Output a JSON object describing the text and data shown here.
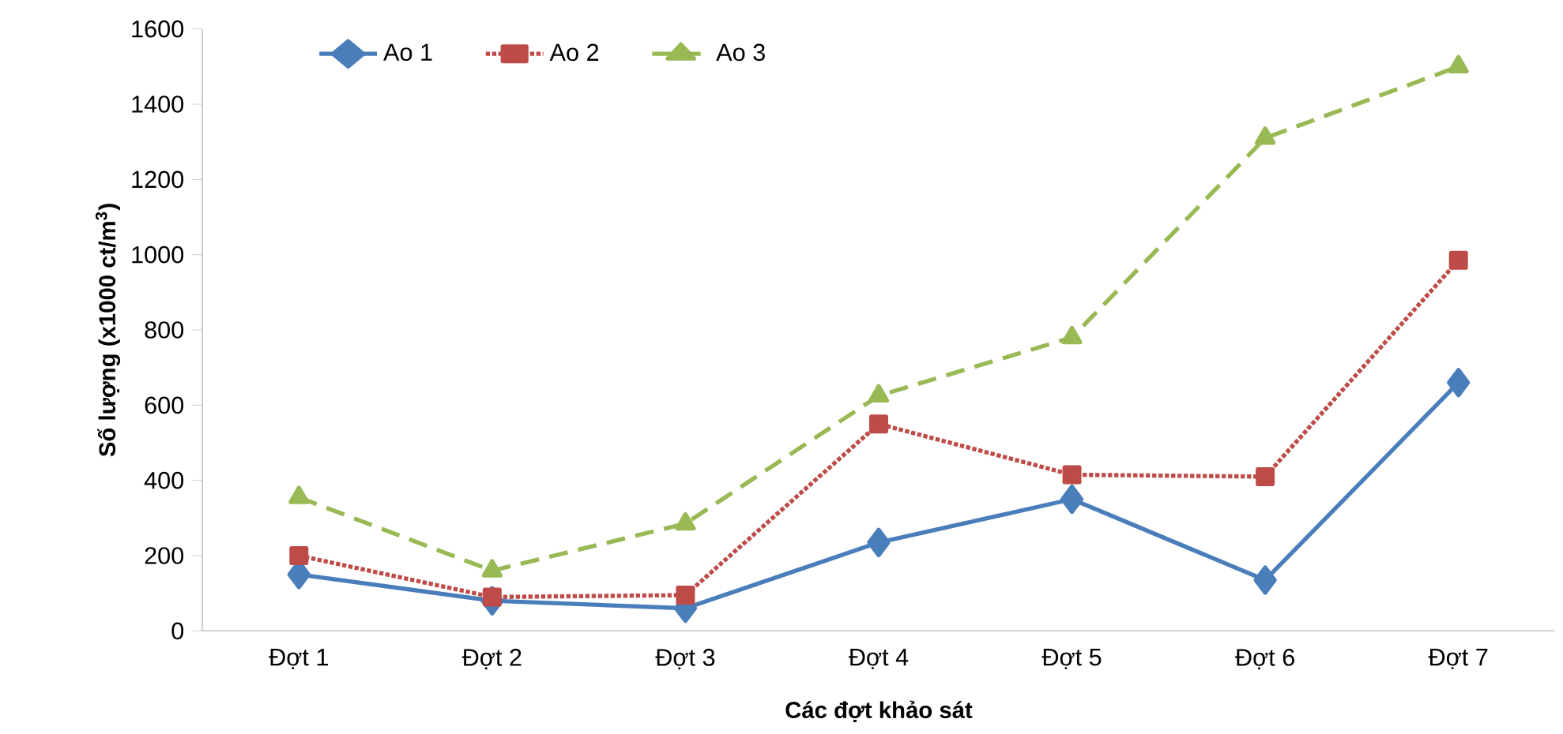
{
  "chart_data": {
    "type": "line",
    "xlabel": "Các đợt khảo sát",
    "ylabel": "Số lượng (x1000 ct/m$^{3}$)",
    "categories": [
      "Đợt 1",
      "Đợt 2",
      "Đợt 3",
      "Đợt 4",
      "Đợt 5",
      "Đợt 6",
      "Đợt 7"
    ],
    "series": [
      {
        "name": "Ao 1",
        "color": "#4a7ebb",
        "marker": "diamond",
        "line_style": "solid",
        "values": [
          150,
          80,
          60,
          235,
          350,
          135,
          660
        ]
      },
      {
        "name": "Ao 2",
        "color": "#be4b48",
        "marker": "square",
        "line_style": "dotted",
        "values": [
          200,
          90,
          95,
          550,
          415,
          410,
          985
        ]
      },
      {
        "name": "Ao 3",
        "color": "#98b954",
        "marker": "triangle",
        "line_style": "dashed",
        "values": [
          355,
          160,
          285,
          625,
          780,
          1310,
          1500
        ]
      }
    ],
    "ylim": [
      0,
      1600
    ],
    "yticks": [
      0,
      200,
      400,
      600,
      800,
      1000,
      1200,
      1400,
      1600
    ],
    "grid": false,
    "legend": "top left"
  }
}
